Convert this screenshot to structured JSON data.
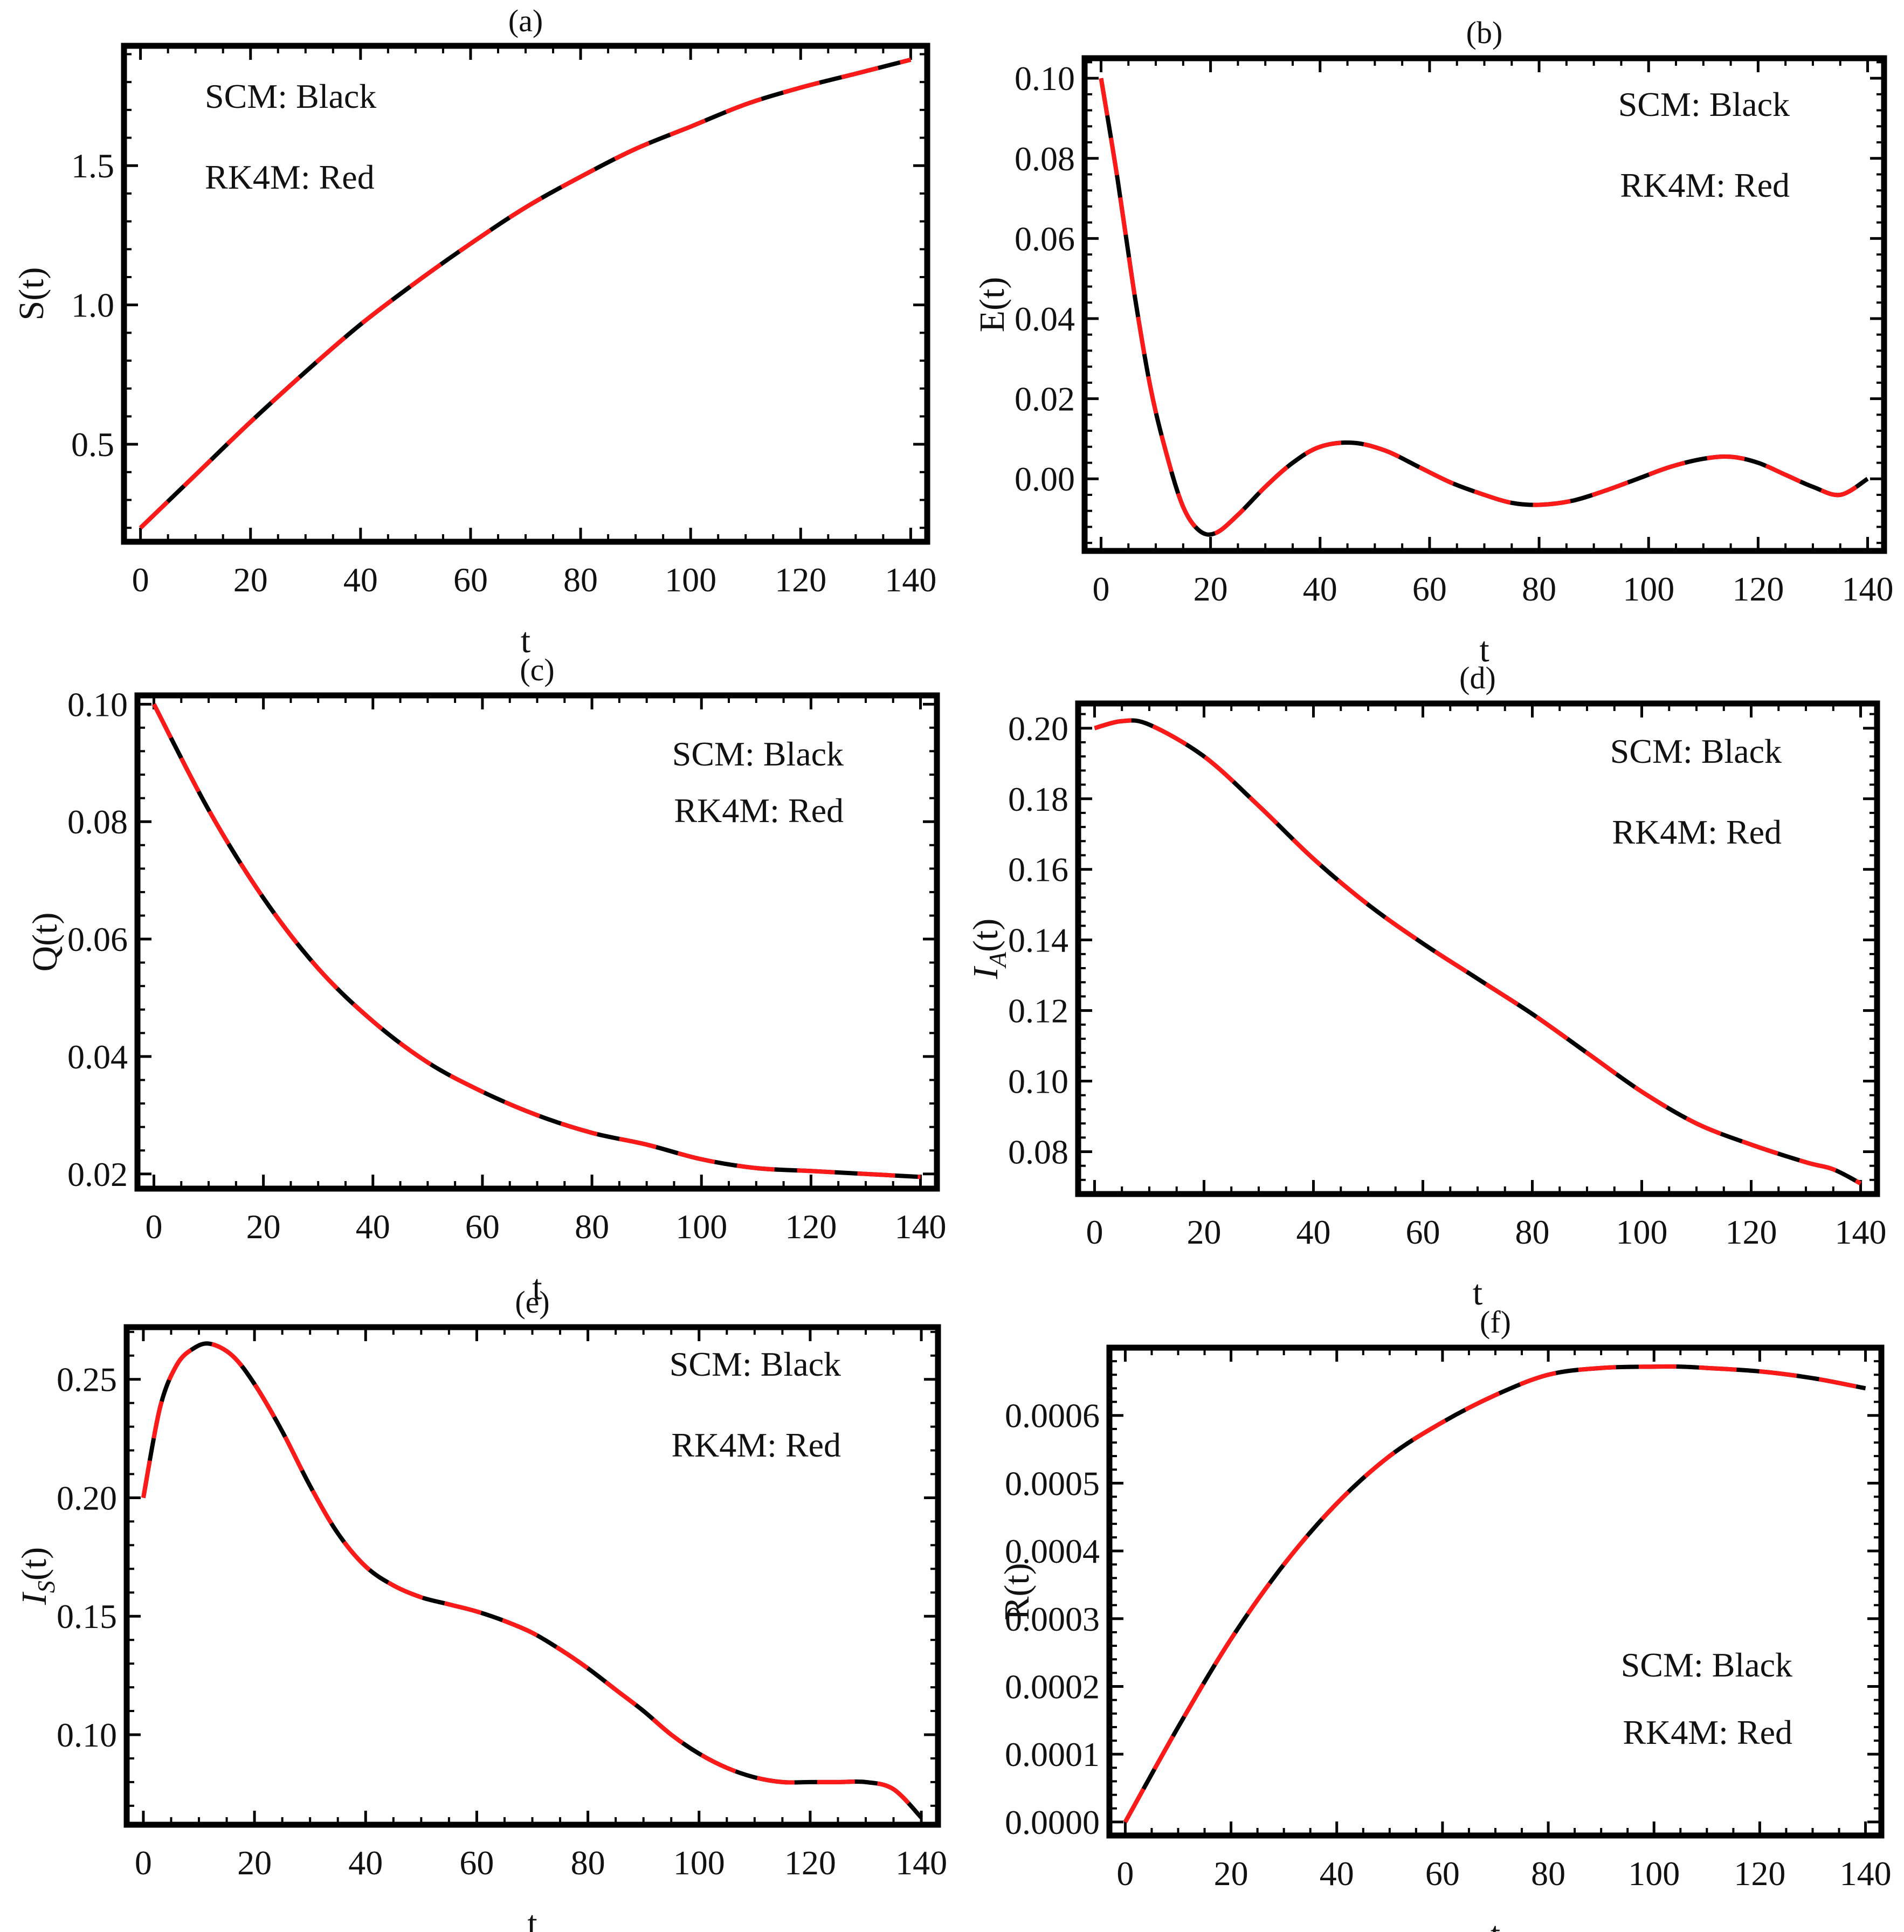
{
  "figure": {
    "series_styles": {
      "scm": {
        "name": "SCM",
        "color": "#000000"
      },
      "rk4m": {
        "name": "RK4M",
        "color": "#ff1a1a"
      }
    }
  },
  "chart_data": [
    {
      "id": "a",
      "type": "line",
      "title": "(a)",
      "xlabel": "t",
      "ylabel": "S(t)",
      "xlim": [
        -3,
        143
      ],
      "ylim": [
        0.15,
        1.93
      ],
      "xticks": [
        0,
        20,
        40,
        60,
        80,
        100,
        120,
        140
      ],
      "yticks": [
        0.5,
        1.0,
        1.5
      ],
      "ytick_labels": [
        "0.5",
        "1.0",
        "1.5"
      ],
      "legend": [
        "SCM: Black",
        "RK4M: Red"
      ],
      "legend_position": "top-left",
      "x": [
        0,
        10,
        20,
        30,
        40,
        50,
        60,
        70,
        80,
        90,
        100,
        110,
        120,
        130,
        140
      ],
      "series": [
        {
          "name": "SCM",
          "values": [
            0.2,
            0.39,
            0.58,
            0.76,
            0.93,
            1.08,
            1.22,
            1.35,
            1.46,
            1.56,
            1.64,
            1.72,
            1.78,
            1.83,
            1.88
          ]
        },
        {
          "name": "RK4M",
          "values": [
            0.2,
            0.39,
            0.58,
            0.76,
            0.93,
            1.08,
            1.22,
            1.35,
            1.46,
            1.56,
            1.64,
            1.72,
            1.78,
            1.83,
            1.88
          ]
        }
      ]
    },
    {
      "id": "b",
      "type": "line",
      "title": "(b)",
      "xlabel": "t",
      "ylabel": "E(t)",
      "xlim": [
        -3,
        143
      ],
      "ylim": [
        -0.018,
        0.105
      ],
      "xticks": [
        0,
        20,
        40,
        60,
        80,
        100,
        120,
        140
      ],
      "yticks": [
        0.0,
        0.02,
        0.04,
        0.06,
        0.08,
        0.1
      ],
      "ytick_labels": [
        "0.00",
        "0.02",
        "0.04",
        "0.06",
        "0.08",
        "0.10"
      ],
      "legend": [
        "SCM: Black",
        "RK4M: Red"
      ],
      "legend_position": "top-right",
      "x": [
        0,
        3,
        6,
        9,
        12,
        15,
        18,
        21,
        25,
        30,
        35,
        40,
        46,
        52,
        58,
        64,
        70,
        75,
        80,
        86,
        92,
        98,
        104,
        110,
        115,
        120,
        125,
        130,
        135,
        140
      ],
      "series": [
        {
          "name": "SCM",
          "values": [
            0.1,
            0.075,
            0.047,
            0.023,
            0.006,
            -0.007,
            -0.013,
            -0.0135,
            -0.009,
            -0.002,
            0.004,
            0.008,
            0.009,
            0.007,
            0.003,
            -0.001,
            -0.004,
            -0.006,
            -0.0065,
            -0.0055,
            -0.003,
            0.0,
            0.003,
            0.005,
            0.0055,
            0.004,
            0.001,
            -0.002,
            -0.004,
            0.0
          ]
        },
        {
          "name": "RK4M",
          "values": [
            0.1,
            0.075,
            0.047,
            0.023,
            0.006,
            -0.007,
            -0.013,
            -0.0135,
            -0.009,
            -0.002,
            0.004,
            0.008,
            0.009,
            0.007,
            0.003,
            -0.001,
            -0.004,
            -0.006,
            -0.0065,
            -0.0055,
            -0.003,
            0.0,
            0.003,
            0.005,
            0.0055,
            0.004,
            0.001,
            -0.002,
            -0.004,
            0.0
          ]
        }
      ]
    },
    {
      "id": "c",
      "type": "line",
      "title": "(c)",
      "xlabel": "t",
      "ylabel": "Q(t)",
      "xlim": [
        -3,
        143
      ],
      "ylim": [
        0.0175,
        0.1015
      ],
      "xticks": [
        0,
        20,
        40,
        60,
        80,
        100,
        120,
        140
      ],
      "yticks": [
        0.02,
        0.04,
        0.06,
        0.08,
        0.1
      ],
      "ytick_labels": [
        "0.02",
        "0.04",
        "0.06",
        "0.08",
        "0.10"
      ],
      "legend": [
        "SCM: Black",
        "RK4M: Red"
      ],
      "legend_position": "top-right",
      "x": [
        0,
        10,
        20,
        30,
        40,
        50,
        60,
        70,
        80,
        90,
        100,
        110,
        120,
        130,
        140
      ],
      "series": [
        {
          "name": "SCM",
          "values": [
            0.1,
            0.082,
            0.067,
            0.055,
            0.046,
            0.039,
            0.034,
            0.03,
            0.027,
            0.025,
            0.0225,
            0.021,
            0.0205,
            0.02,
            0.0195
          ]
        },
        {
          "name": "RK4M",
          "values": [
            0.1,
            0.082,
            0.067,
            0.055,
            0.046,
            0.039,
            0.034,
            0.03,
            0.027,
            0.025,
            0.0225,
            0.021,
            0.0205,
            0.02,
            0.0195
          ]
        }
      ]
    },
    {
      "id": "d",
      "type": "line",
      "title": "(d)",
      "xlabel": "t",
      "ylabel": "I",
      "ylabel_sub": "A",
      "ylabel_tail": "(t)",
      "xlim": [
        -3,
        143
      ],
      "ylim": [
        0.068,
        0.207
      ],
      "xticks": [
        0,
        20,
        40,
        60,
        80,
        100,
        120,
        140
      ],
      "yticks": [
        0.08,
        0.1,
        0.12,
        0.14,
        0.16,
        0.18,
        0.2
      ],
      "ytick_labels": [
        "0.08",
        "0.10",
        "0.12",
        "0.14",
        "0.16",
        "0.18",
        "0.20"
      ],
      "legend": [
        "SCM: Black",
        "RK4M: Red"
      ],
      "legend_position": "top-right",
      "x": [
        0,
        5,
        10,
        20,
        30,
        40,
        50,
        60,
        70,
        80,
        90,
        100,
        110,
        120,
        130,
        135,
        140
      ],
      "series": [
        {
          "name": "SCM",
          "values": [
            0.2,
            0.202,
            0.201,
            0.192,
            0.178,
            0.163,
            0.15,
            0.139,
            0.129,
            0.119,
            0.108,
            0.097,
            0.088,
            0.082,
            0.077,
            0.075,
            0.071
          ]
        },
        {
          "name": "RK4M",
          "values": [
            0.2,
            0.202,
            0.201,
            0.192,
            0.178,
            0.163,
            0.15,
            0.139,
            0.129,
            0.119,
            0.108,
            0.097,
            0.088,
            0.082,
            0.077,
            0.075,
            0.071
          ]
        }
      ]
    },
    {
      "id": "e",
      "type": "line",
      "title": "(e)",
      "xlabel": "t",
      "ylabel": "I",
      "ylabel_sub": "S",
      "ylabel_tail": "(t)",
      "xlim": [
        -3,
        143
      ],
      "ylim": [
        0.062,
        0.272
      ],
      "xticks": [
        0,
        20,
        40,
        60,
        80,
        100,
        120,
        140
      ],
      "yticks": [
        0.1,
        0.15,
        0.2,
        0.25
      ],
      "ytick_labels": [
        "0.10",
        "0.15",
        "0.20",
        "0.25"
      ],
      "legend": [
        "SCM: Black",
        "RK4M: Red"
      ],
      "legend_position": "top-right",
      "x": [
        0,
        3,
        6,
        9,
        12,
        16,
        20,
        25,
        30,
        35,
        40,
        45,
        50,
        55,
        60,
        65,
        70,
        75,
        80,
        85,
        90,
        95,
        100,
        105,
        110,
        115,
        120,
        125,
        130,
        135,
        140
      ],
      "series": [
        {
          "name": "SCM",
          "values": [
            0.2,
            0.238,
            0.256,
            0.263,
            0.265,
            0.26,
            0.248,
            0.228,
            0.205,
            0.185,
            0.171,
            0.163,
            0.158,
            0.155,
            0.152,
            0.148,
            0.143,
            0.136,
            0.128,
            0.119,
            0.11,
            0.1,
            0.092,
            0.086,
            0.082,
            0.08,
            0.08,
            0.08,
            0.08,
            0.077,
            0.065
          ]
        },
        {
          "name": "RK4M",
          "values": [
            0.2,
            0.238,
            0.256,
            0.263,
            0.265,
            0.26,
            0.248,
            0.228,
            0.205,
            0.185,
            0.171,
            0.163,
            0.158,
            0.155,
            0.152,
            0.148,
            0.143,
            0.136,
            0.128,
            0.119,
            0.11,
            0.1,
            0.092,
            0.086,
            0.082,
            0.08,
            0.08,
            0.08,
            0.08,
            0.077,
            0.065
          ]
        }
      ]
    },
    {
      "id": "f",
      "type": "line",
      "title": "(f)",
      "xlabel": "t",
      "ylabel": "R(t)",
      "xlim": [
        -3,
        143
      ],
      "ylim": [
        -2e-05,
        0.0007
      ],
      "xticks": [
        0,
        20,
        40,
        60,
        80,
        100,
        120,
        140
      ],
      "yticks": [
        0,
        0.0001,
        0.0002,
        0.0003,
        0.0004,
        0.0005,
        0.0006
      ],
      "ytick_labels": [
        "0.0000",
        "0.0001",
        "0.0002",
        "0.0003",
        "0.0004",
        "0.0005",
        "0.0006"
      ],
      "legend": [
        "SCM: Black",
        "RK4M: Red"
      ],
      "legend_position": "bottom-right",
      "x": [
        0,
        10,
        20,
        30,
        40,
        50,
        60,
        70,
        80,
        90,
        100,
        105,
        110,
        120,
        130,
        140
      ],
      "series": [
        {
          "name": "SCM",
          "values": [
            0.0,
            0.00014,
            0.00027,
            0.00038,
            0.00047,
            0.00054,
            0.00059,
            0.00063,
            0.00066,
            0.00067,
            0.000672,
            0.000672,
            0.00067,
            0.000665,
            0.000655,
            0.00064
          ]
        },
        {
          "name": "RK4M",
          "values": [
            0.0,
            0.00014,
            0.00027,
            0.00038,
            0.00047,
            0.00054,
            0.00059,
            0.00063,
            0.00066,
            0.00067,
            0.000672,
            0.000672,
            0.00067,
            0.000665,
            0.000655,
            0.00064
          ]
        }
      ]
    }
  ]
}
